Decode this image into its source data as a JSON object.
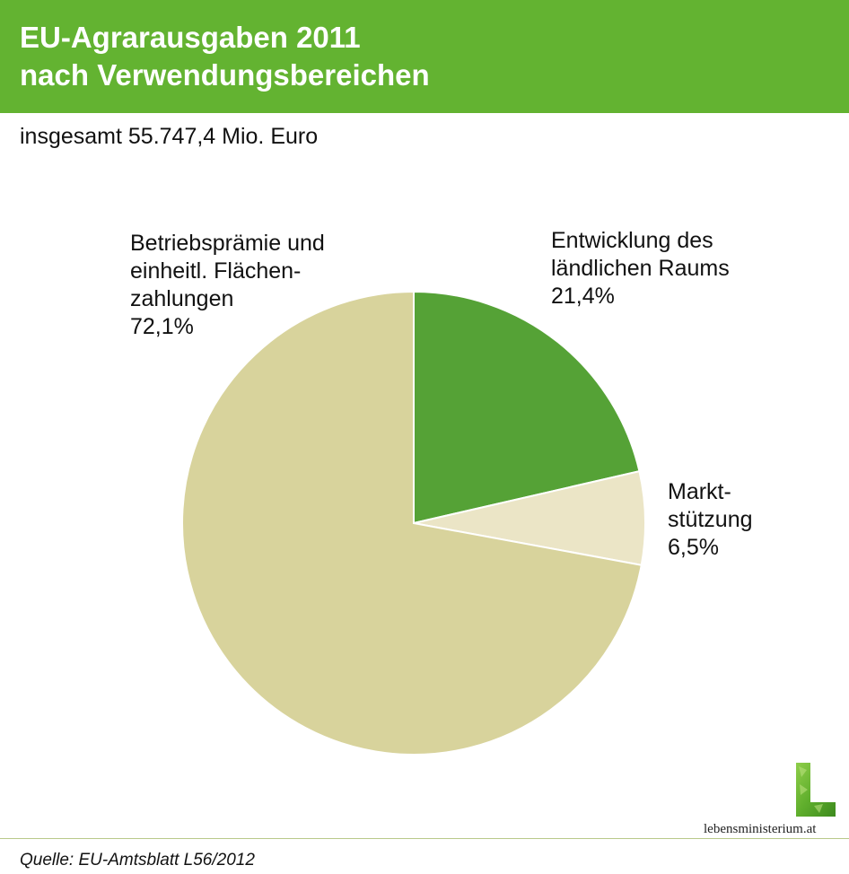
{
  "header": {
    "title_line1": "EU-Agrarausgaben 2011",
    "title_line2": "nach Verwendungsbereichen",
    "background_color": "#63b331"
  },
  "subtitle": "insgesamt 55.747,4 Mio. Euro",
  "chart_data": {
    "type": "pie",
    "title": "EU-Agrarausgaben 2011 nach Verwendungsbereichen",
    "subtitle": "insgesamt 55.747,4 Mio. Euro",
    "start": "12 o'clock",
    "direction": "clockwise",
    "slices": [
      {
        "label_lines": [
          "Entwicklung des",
          "ländlichen Raums"
        ],
        "value": 21.4,
        "value_label": "21,4%",
        "color": "#55a236"
      },
      {
        "label_lines": [
          "Markt-",
          "stützung"
        ],
        "value": 6.5,
        "value_label": "6,5%",
        "color": "#ebe5c6"
      },
      {
        "label_lines": [
          "Betriebsprämie und",
          "einheitl. Flächen-",
          "zahlungen"
        ],
        "value": 72.1,
        "value_label": "72,1%",
        "color": "#d8d39c"
      }
    ]
  },
  "logo": {
    "icon": "lebensministerium-leaf-L-icon",
    "text": "lebensministerium.at"
  },
  "source": "Quelle: EU-Amtsblatt L56/2012"
}
